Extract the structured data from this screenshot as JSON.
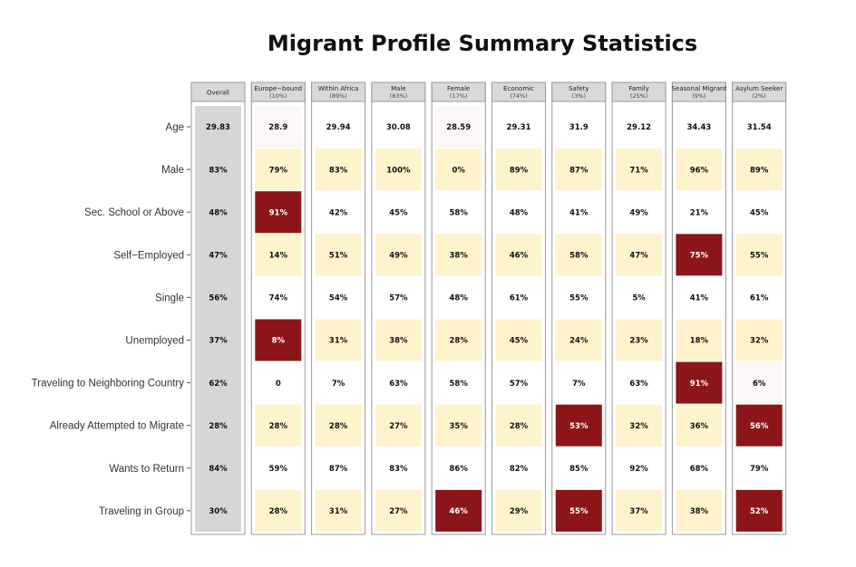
{
  "chart_data": {
    "type": "table",
    "title": "Migrant Profile Summary Statistics",
    "rows": [
      "Age",
      "Male",
      "Sec. School or Above",
      "Self−Employed",
      "Single",
      "Unemployed",
      "Traveling to Neighboring Country",
      "Already Attempted to Migrate",
      "Wants to Return",
      "Traveling in Group"
    ],
    "columns": [
      {
        "name": "Overall",
        "share": "",
        "values": [
          "29.83",
          "83%",
          "48%",
          "47%",
          "56%",
          "37%",
          "62%",
          "28%",
          "84%",
          "30%"
        ],
        "shades": [
          "gray",
          "gray",
          "gray",
          "gray",
          "gray",
          "gray",
          "gray",
          "gray",
          "gray",
          "gray"
        ]
      },
      {
        "name": "Europe−bound",
        "share": "(10%)",
        "values": [
          "28.9",
          "79%",
          "91%",
          "14%",
          "74%",
          "8%",
          "0",
          "28%",
          "59%",
          "28%"
        ],
        "shades": [
          "faint",
          "light",
          "dark",
          "light",
          "white",
          "dark",
          "white",
          "light",
          "white",
          "light"
        ]
      },
      {
        "name": "Within Africa",
        "share": "(89%)",
        "values": [
          "29.94",
          "83%",
          "42%",
          "51%",
          "54%",
          "31%",
          "7%",
          "28%",
          "87%",
          "31%"
        ],
        "shades": [
          "white",
          "light",
          "white",
          "light",
          "white",
          "light",
          "white",
          "light",
          "white",
          "light"
        ]
      },
      {
        "name": "Male",
        "share": "(83%)",
        "values": [
          "30.08",
          "100%",
          "45%",
          "49%",
          "57%",
          "38%",
          "63%",
          "27%",
          "83%",
          "27%"
        ],
        "shades": [
          "white",
          "light",
          "white",
          "light",
          "white",
          "light",
          "white",
          "light",
          "white",
          "light"
        ]
      },
      {
        "name": "Female",
        "share": "(17%)",
        "values": [
          "28.59",
          "0%",
          "58%",
          "38%",
          "48%",
          "28%",
          "58%",
          "35%",
          "86%",
          "46%"
        ],
        "shades": [
          "faint",
          "light",
          "white",
          "light",
          "white",
          "light",
          "white",
          "light",
          "white",
          "dark"
        ]
      },
      {
        "name": "Economic",
        "share": "(74%)",
        "values": [
          "29.31",
          "89%",
          "48%",
          "46%",
          "61%",
          "45%",
          "57%",
          "28%",
          "82%",
          "29%"
        ],
        "shades": [
          "white",
          "light",
          "white",
          "light",
          "white",
          "light",
          "white",
          "light",
          "white",
          "light"
        ]
      },
      {
        "name": "Safety",
        "share": "(3%)",
        "values": [
          "31.9",
          "87%",
          "41%",
          "58%",
          "55%",
          "24%",
          "7%",
          "53%",
          "85%",
          "55%"
        ],
        "shades": [
          "white",
          "light",
          "white",
          "light",
          "white",
          "light",
          "white",
          "dark",
          "white",
          "dark"
        ]
      },
      {
        "name": "Family",
        "share": "(25%)",
        "values": [
          "29.12",
          "71%",
          "49%",
          "47%",
          "5%",
          "23%",
          "63%",
          "32%",
          "92%",
          "37%"
        ],
        "shades": [
          "white",
          "light",
          "white",
          "light",
          "white",
          "light",
          "white",
          "light",
          "white",
          "light"
        ]
      },
      {
        "name": "Seasonal Migrant",
        "share": "(9%)",
        "values": [
          "34.43",
          "96%",
          "21%",
          "75%",
          "41%",
          "18%",
          "91%",
          "36%",
          "68%",
          "38%"
        ],
        "shades": [
          "white",
          "light",
          "white",
          "dark",
          "white",
          "light",
          "dark",
          "light",
          "white",
          "light"
        ]
      },
      {
        "name": "Asylum Seeker",
        "share": "(2%)",
        "values": [
          "31.54",
          "89%",
          "45%",
          "55%",
          "61%",
          "32%",
          "6%",
          "56%",
          "79%",
          "52%"
        ],
        "shades": [
          "white",
          "light",
          "white",
          "light",
          "white",
          "light",
          "faint",
          "dark",
          "white",
          "dark"
        ]
      }
    ],
    "colors": {
      "dark": "#8b1518",
      "light": "#fff3cc",
      "faint": "#fdf6f6",
      "white": "#ffffff",
      "gray": "#d6d6d6",
      "header": "#d9d9d9",
      "border": "#9a9a9a"
    },
    "grid": false
  }
}
